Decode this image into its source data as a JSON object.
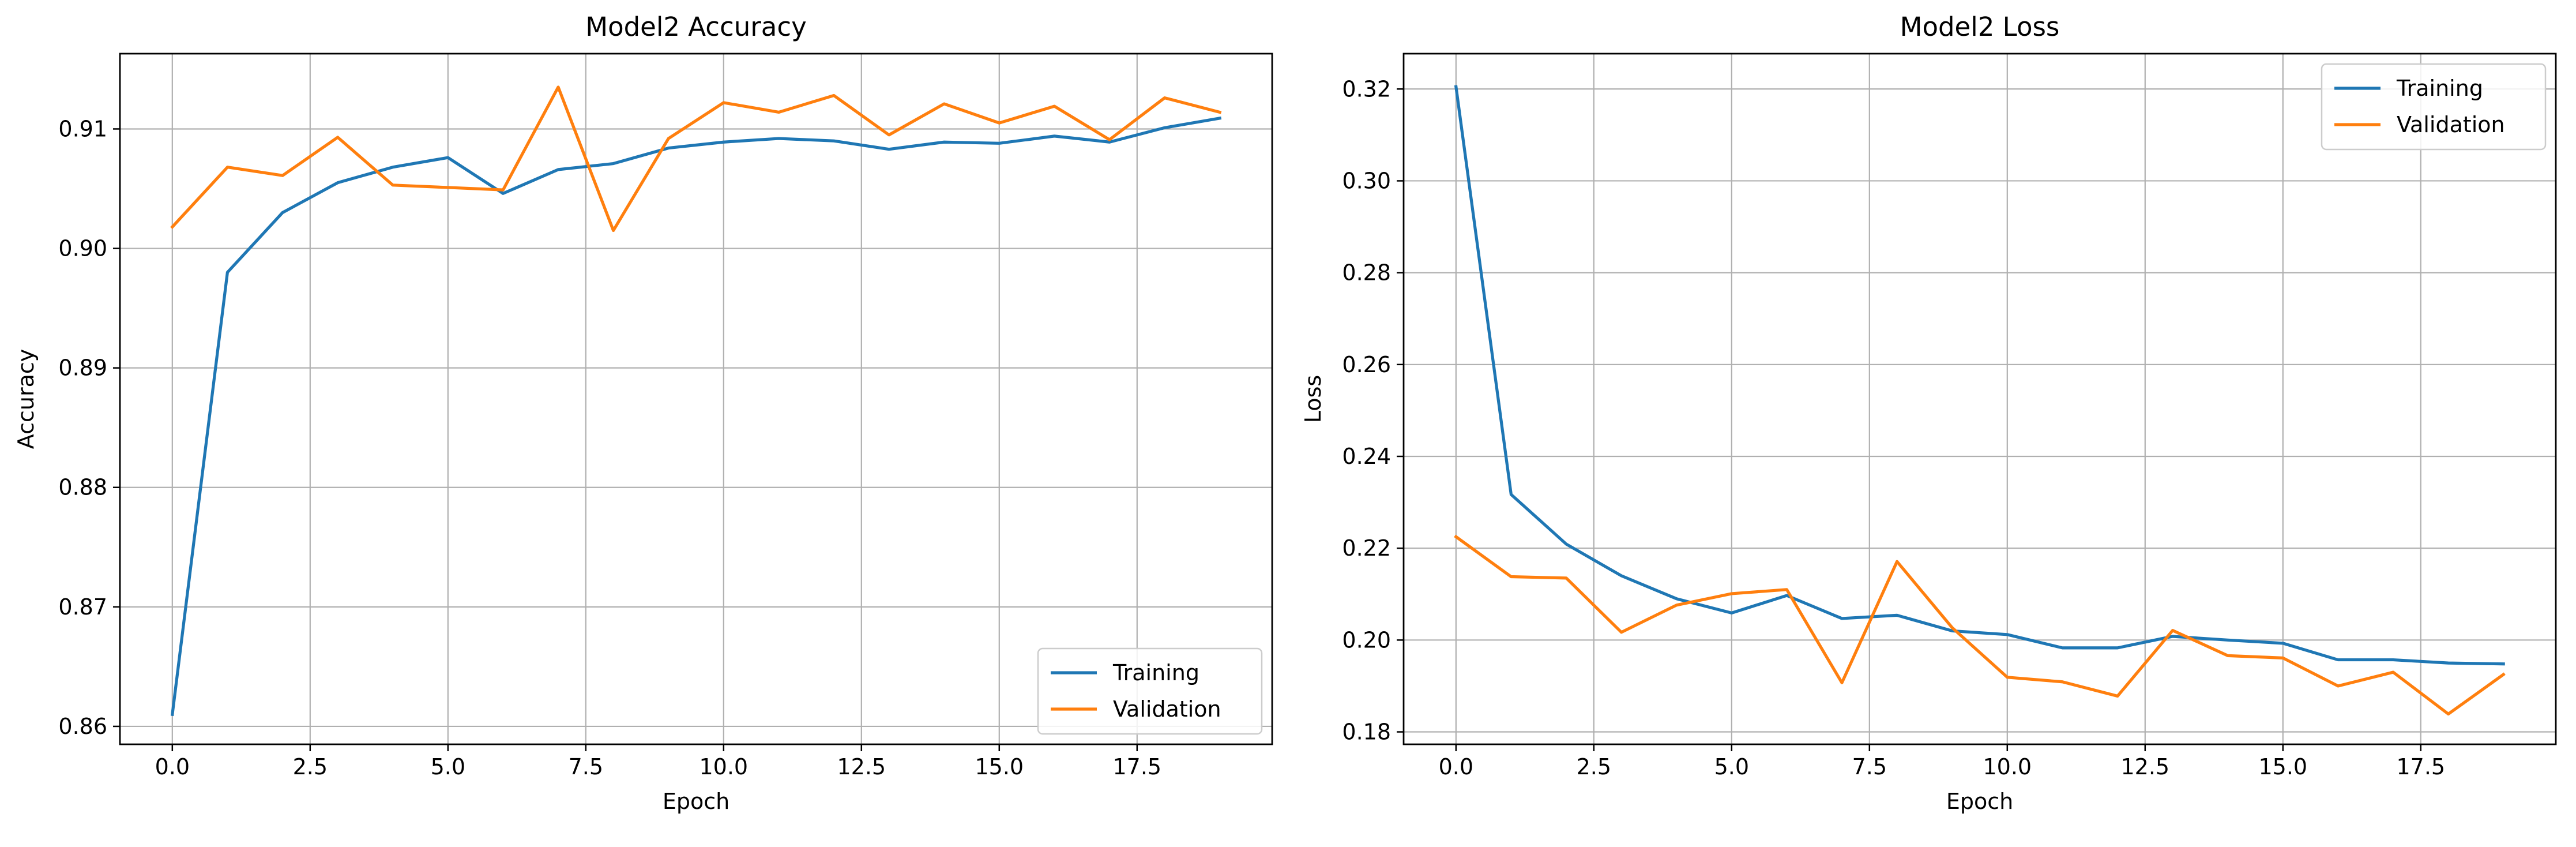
{
  "chart_data": [
    {
      "type": "line",
      "title": "Model2 Accuracy",
      "xlabel": "Epoch",
      "ylabel": "Accuracy",
      "xlim": [
        -0.95,
        19.95
      ],
      "ylim": [
        0.8585,
        0.9163
      ],
      "xticks": [
        0.0,
        2.5,
        5.0,
        7.5,
        10.0,
        12.5,
        15.0,
        17.5
      ],
      "xtick_labels": [
        "0.0",
        "2.5",
        "5.0",
        "7.5",
        "10.0",
        "12.5",
        "15.0",
        "17.5"
      ],
      "yticks": [
        0.86,
        0.87,
        0.88,
        0.89,
        0.9,
        0.91
      ],
      "ytick_labels": [
        "0.86",
        "0.87",
        "0.88",
        "0.89",
        "0.90",
        "0.91"
      ],
      "grid": true,
      "legend_position": "lower-right",
      "x": [
        0,
        1,
        2,
        3,
        4,
        5,
        6,
        7,
        8,
        9,
        10,
        11,
        12,
        13,
        14,
        15,
        16,
        17,
        18,
        19
      ],
      "series": [
        {
          "name": "Training",
          "color": "#1f77b4",
          "values": [
            0.861,
            0.898,
            0.903,
            0.9055,
            0.9068,
            0.9076,
            0.9046,
            0.9066,
            0.9071,
            0.9084,
            0.9089,
            0.9092,
            0.909,
            0.9083,
            0.9089,
            0.9088,
            0.9094,
            0.9089,
            0.9101,
            0.9109
          ]
        },
        {
          "name": "Validation",
          "color": "#ff7f0e",
          "values": [
            0.9018,
            0.9068,
            0.9061,
            0.9093,
            0.9053,
            0.9051,
            0.9049,
            0.9135,
            0.9015,
            0.9092,
            0.9122,
            0.9114,
            0.9128,
            0.9095,
            0.9121,
            0.9105,
            0.9119,
            0.9091,
            0.9126,
            0.9114
          ]
        }
      ]
    },
    {
      "type": "line",
      "title": "Model2 Loss",
      "xlabel": "Epoch",
      "ylabel": "Loss",
      "xlim": [
        -0.95,
        19.95
      ],
      "ylim": [
        0.1773,
        0.3277
      ],
      "xticks": [
        0.0,
        2.5,
        5.0,
        7.5,
        10.0,
        12.5,
        15.0,
        17.5
      ],
      "xtick_labels": [
        "0.0",
        "2.5",
        "5.0",
        "7.5",
        "10.0",
        "12.5",
        "15.0",
        "17.5"
      ],
      "yticks": [
        0.18,
        0.2,
        0.22,
        0.24,
        0.26,
        0.28,
        0.3,
        0.32
      ],
      "ytick_labels": [
        "0.18",
        "0.20",
        "0.22",
        "0.24",
        "0.26",
        "0.28",
        "0.30",
        "0.32"
      ],
      "grid": true,
      "legend_position": "upper-right",
      "x": [
        0,
        1,
        2,
        3,
        4,
        5,
        6,
        7,
        8,
        9,
        10,
        11,
        12,
        13,
        14,
        15,
        16,
        17,
        18,
        19
      ],
      "series": [
        {
          "name": "Training",
          "color": "#1f77b4",
          "values": [
            0.3205,
            0.2317,
            0.2209,
            0.214,
            0.209,
            0.2059,
            0.2097,
            0.2047,
            0.2054,
            0.202,
            0.2012,
            0.1983,
            0.1983,
            0.2008,
            0.2,
            0.1993,
            0.1957,
            0.1957,
            0.195,
            0.1948
          ]
        },
        {
          "name": "Validation",
          "color": "#ff7f0e",
          "values": [
            0.2225,
            0.2138,
            0.2135,
            0.2017,
            0.2076,
            0.2101,
            0.211,
            0.1907,
            0.2171,
            0.2027,
            0.1919,
            0.1909,
            0.1878,
            0.2021,
            0.1966,
            0.1961,
            0.19,
            0.193,
            0.1839,
            0.1925
          ]
        }
      ]
    }
  ]
}
